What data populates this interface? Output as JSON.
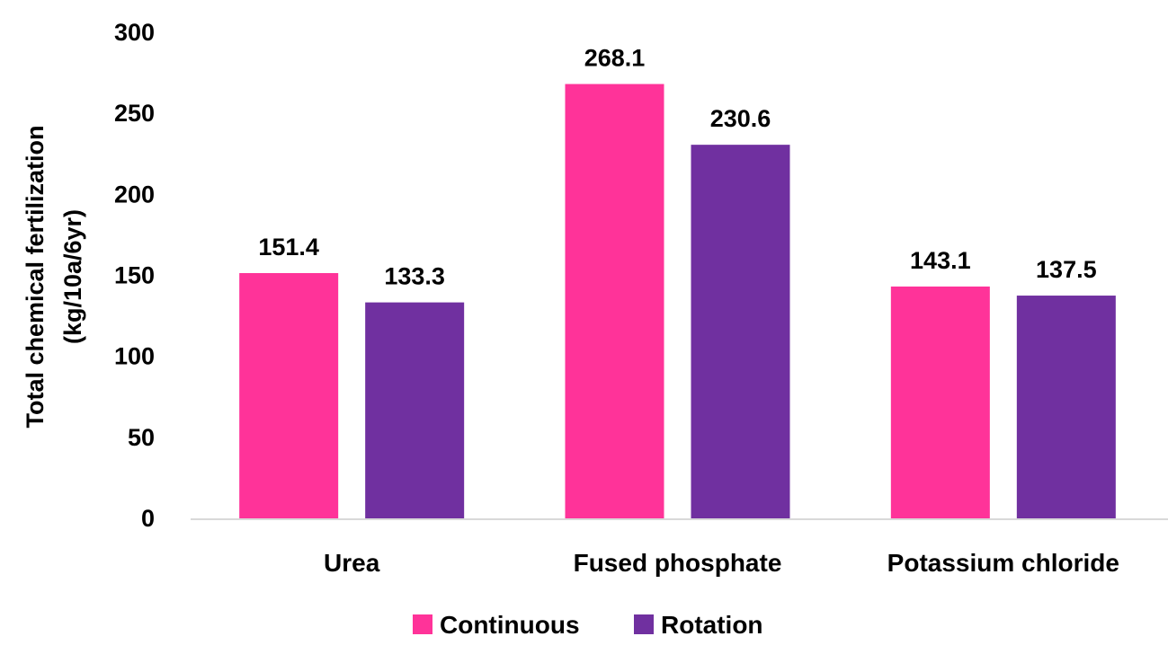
{
  "chart_data": {
    "type": "bar",
    "categories": [
      "Urea",
      "Fused phosphate",
      "Potassium chloride"
    ],
    "series": [
      {
        "name": "Continuous",
        "color": "#ff3399",
        "values": [
          151.4,
          268.1,
          143.1
        ]
      },
      {
        "name": "Rotation",
        "color": "#7030a0",
        "values": [
          133.3,
          230.6,
          137.5
        ]
      }
    ],
    "value_labels": [
      [
        "151.4",
        "268.1",
        "143.1"
      ],
      [
        "133.3",
        "230.6",
        "137.5"
      ]
    ],
    "ylabel": [
      "Total chemical fertilization",
      "(kg/10a/6yr)"
    ],
    "ylim": [
      0,
      300
    ],
    "yticks": [
      "0",
      "50",
      "100",
      "150",
      "200",
      "250",
      "300"
    ],
    "grid": false,
    "legend_position": "bottom",
    "axis_color": "#d9d9d9"
  }
}
